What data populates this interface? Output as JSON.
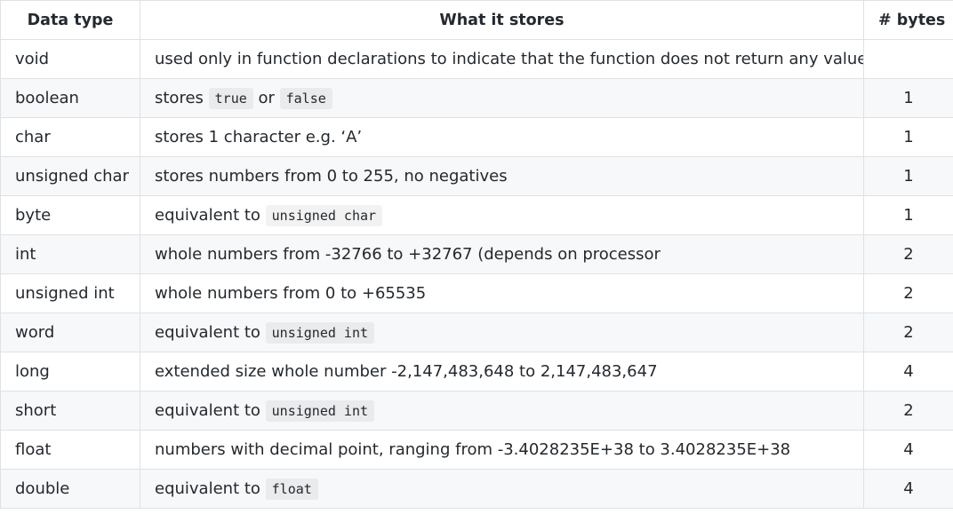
{
  "table": {
    "headers": [
      "Data type",
      "What it stores",
      "# bytes"
    ],
    "rows": [
      {
        "type": "void",
        "desc": [
          {
            "t": "used only in function declarations to indicate that the function does not return any value"
          }
        ],
        "bytes": ""
      },
      {
        "type": "boolean",
        "desc": [
          {
            "t": "stores "
          },
          {
            "c": "true"
          },
          {
            "t": " or "
          },
          {
            "c": "false"
          }
        ],
        "bytes": "1"
      },
      {
        "type": "char",
        "desc": [
          {
            "t": "stores 1 character e.g. ‘A’"
          }
        ],
        "bytes": "1"
      },
      {
        "type": "unsigned char",
        "desc": [
          {
            "t": "stores numbers from 0 to 255, no negatives"
          }
        ],
        "bytes": "1"
      },
      {
        "type": "byte",
        "desc": [
          {
            "t": "equivalent to "
          },
          {
            "c": "unsigned char"
          }
        ],
        "bytes": "1"
      },
      {
        "type": "int",
        "desc": [
          {
            "t": "whole numbers from -32766 to +32767 (depends on processor"
          }
        ],
        "bytes": "2"
      },
      {
        "type": "unsigned int",
        "desc": [
          {
            "t": "whole numbers from 0 to +65535"
          }
        ],
        "bytes": "2"
      },
      {
        "type": "word",
        "desc": [
          {
            "t": "equivalent to "
          },
          {
            "c": "unsigned int"
          }
        ],
        "bytes": "2"
      },
      {
        "type": "long",
        "desc": [
          {
            "t": "extended size whole number -2,147,483,648 to 2,147,483,647"
          }
        ],
        "bytes": "4"
      },
      {
        "type": "short",
        "desc": [
          {
            "t": "equivalent to "
          },
          {
            "c": "unsigned int"
          }
        ],
        "bytes": "2"
      },
      {
        "type": "float",
        "desc": [
          {
            "t": "numbers with decimal point, ranging from -3.4028235E+38 to 3.4028235E+38"
          }
        ],
        "bytes": "4"
      },
      {
        "type": "double",
        "desc": [
          {
            "t": "equivalent to "
          },
          {
            "c": "float"
          }
        ],
        "bytes": "4"
      }
    ]
  }
}
